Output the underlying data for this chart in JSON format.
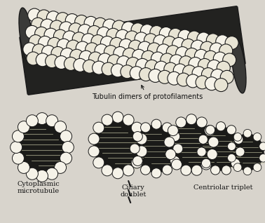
{
  "background_color": "#d8d4cc",
  "label_tubulin": "Tubulin dimers of protofilaments",
  "label_cyto": "Cytoplasmic\nmicrotubule",
  "label_ciliary": "Ciliary\ndoublet",
  "label_centriolar": "Centriolar triplet",
  "text_color": "#111111",
  "dark_color": "#1a1a1a",
  "light_color": "#f5f2e8",
  "font_size_labels": 7.0,
  "fig_width": 3.78,
  "fig_height": 3.18,
  "dpi": 100
}
